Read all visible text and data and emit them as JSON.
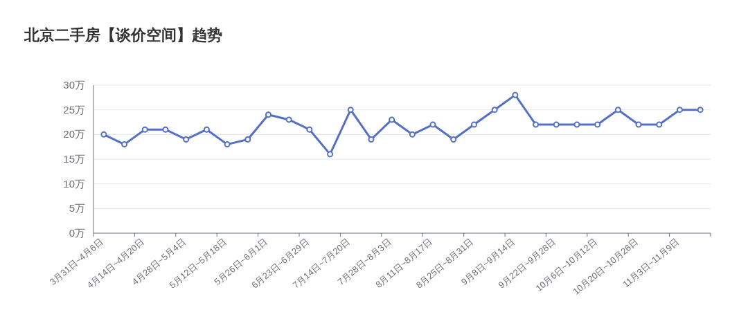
{
  "chart_data": {
    "type": "line",
    "title": "北京二手房【谈价空间】趋势",
    "categories": [
      "3月31日~4月6日",
      null,
      "4月14日~4月20日",
      null,
      "4月28日~5月4日",
      null,
      "5月12日~5月18日",
      null,
      "5月26日~6月1日",
      null,
      "6月23日~6月29日",
      null,
      "7月14日~7月20日",
      null,
      "7月28日~8月3日",
      null,
      "8月11日~8月17日",
      null,
      "8月25日~8月31日",
      null,
      "9月8日~9月14日",
      null,
      "9月22日~9月28日",
      null,
      "10月6日~10月12日",
      null,
      "10月20日~10月26日",
      null,
      "11月3日~11月9日",
      null
    ],
    "series": [
      {
        "color": "#5470c6",
        "values": [
          20,
          18,
          21,
          21,
          19,
          21,
          18,
          19,
          24,
          23,
          21,
          16,
          25,
          19,
          23,
          20,
          22,
          19,
          22,
          25,
          28,
          22,
          22,
          22,
          22,
          25,
          22,
          22,
          25,
          25
        ]
      }
    ],
    "ylim": [
      0,
      30
    ],
    "yticks": [
      {
        "value": 0,
        "label": "0万"
      },
      {
        "value": 5,
        "label": "5万"
      },
      {
        "value": 10,
        "label": "10万"
      },
      {
        "value": 15,
        "label": "15万"
      },
      {
        "value": 20,
        "label": "20万"
      },
      {
        "value": 25,
        "label": "25万"
      },
      {
        "value": 30,
        "label": "30万"
      }
    ],
    "grid": "y",
    "marker": "circle",
    "line_style": "solid"
  }
}
